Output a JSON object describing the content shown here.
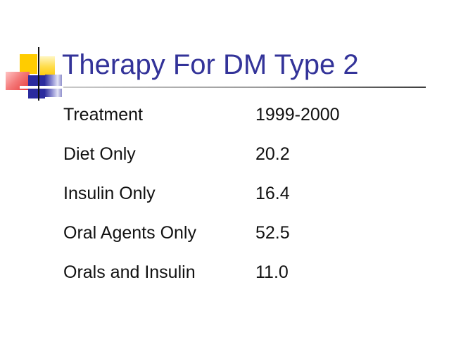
{
  "slide": {
    "title": "Therapy For DM Type 2"
  },
  "table": {
    "rows": [
      {
        "label": "Treatment",
        "value": "1999-2000"
      },
      {
        "label": "Diet Only",
        "value": "20.2"
      },
      {
        "label": "Insulin Only",
        "value": "16.4"
      },
      {
        "label": "Oral Agents Only",
        "value": "52.5"
      },
      {
        "label": "Orals and Insulin",
        "value": "11.0"
      }
    ]
  },
  "colors": {
    "title": "#333399",
    "body_text": "#111111",
    "logo_yellow": "#FFCC00",
    "logo_red": "#E83A3A",
    "logo_navy": "#2B2B9E",
    "logo_lavender": "#E3E3F6",
    "rule_gradient_start": "#C9C9C9",
    "rule_gradient_end": "#3D3D3D"
  }
}
